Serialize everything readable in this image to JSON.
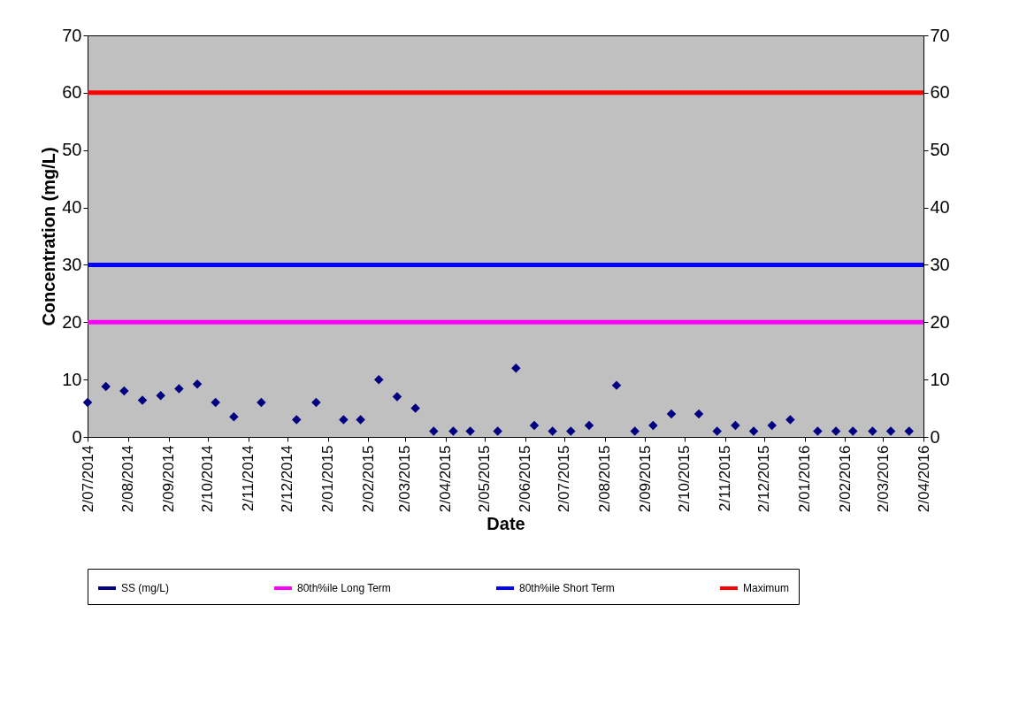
{
  "chart_data": {
    "type": "scatter",
    "xlabel": "Date",
    "ylabel": "Concentration (mg/L)",
    "x": [
      "2014-07-02",
      "2014-07-16",
      "2014-07-30",
      "2014-08-13",
      "2014-08-27",
      "2014-09-10",
      "2014-09-24",
      "2014-10-08",
      "2014-10-22",
      "2014-11-12",
      "2014-12-09",
      "2014-12-24",
      "2015-01-14",
      "2015-01-27",
      "2015-02-10",
      "2015-02-24",
      "2015-03-10",
      "2015-03-24",
      "2015-04-08",
      "2015-04-21",
      "2015-05-12",
      "2015-05-26",
      "2015-06-09",
      "2015-06-23",
      "2015-07-07",
      "2015-07-21",
      "2015-08-11",
      "2015-08-25",
      "2015-09-08",
      "2015-09-22",
      "2015-10-13",
      "2015-10-27",
      "2015-11-10",
      "2015-11-24",
      "2015-12-08",
      "2015-12-22",
      "2016-01-12",
      "2016-01-26",
      "2016-02-08",
      "2016-02-23",
      "2016-03-08",
      "2016-03-22"
    ],
    "series": [
      {
        "name": "SS (mg/L)",
        "color": "#000080",
        "marker": "diamond",
        "values": [
          6,
          8.8,
          8,
          6.4,
          7.2,
          8.4,
          9.2,
          6,
          3.5,
          6,
          3,
          6,
          3,
          3,
          10,
          7,
          5,
          1,
          1,
          1,
          1,
          12,
          2,
          1,
          1,
          2,
          9,
          1,
          2,
          4,
          4,
          1,
          2,
          1,
          2,
          3,
          1,
          1,
          1,
          1,
          1,
          1
        ]
      }
    ],
    "ref_lines": [
      {
        "axis": "y",
        "value": 20,
        "label": "80th%ile Long Term",
        "color": "#ff00ff"
      },
      {
        "axis": "y",
        "value": 30,
        "label": "80th%ile Short Term",
        "color": "#0000ff"
      },
      {
        "axis": "y",
        "value": 60,
        "label": "Maximum",
        "color": "#ff0000"
      }
    ],
    "xlim": [
      "2014-07-02",
      "2016-04-02"
    ],
    "xticks": [
      {
        "value": "2014-07-02",
        "label": "2/07/2014"
      },
      {
        "value": "2014-08-02",
        "label": "2/08/2014"
      },
      {
        "value": "2014-09-02",
        "label": "2/09/2014"
      },
      {
        "value": "2014-10-02",
        "label": "2/10/2014"
      },
      {
        "value": "2014-11-02",
        "label": "2/11/2014"
      },
      {
        "value": "2014-12-02",
        "label": "2/12/2014"
      },
      {
        "value": "2015-01-02",
        "label": "2/01/2015"
      },
      {
        "value": "2015-02-02",
        "label": "2/02/2015"
      },
      {
        "value": "2015-03-02",
        "label": "2/03/2015"
      },
      {
        "value": "2015-04-02",
        "label": "2/04/2015"
      },
      {
        "value": "2015-05-02",
        "label": "2/05/2015"
      },
      {
        "value": "2015-06-02",
        "label": "2/06/2015"
      },
      {
        "value": "2015-07-02",
        "label": "2/07/2015"
      },
      {
        "value": "2015-08-02",
        "label": "2/08/2015"
      },
      {
        "value": "2015-09-02",
        "label": "2/09/2015"
      },
      {
        "value": "2015-10-02",
        "label": "2/10/2015"
      },
      {
        "value": "2015-11-02",
        "label": "2/11/2015"
      },
      {
        "value": "2015-12-02",
        "label": "2/12/2015"
      },
      {
        "value": "2016-01-02",
        "label": "2/01/2016"
      },
      {
        "value": "2016-02-02",
        "label": "2/02/2016"
      },
      {
        "value": "2016-03-02",
        "label": "2/03/2016"
      },
      {
        "value": "2016-04-02",
        "label": "2/04/2016"
      }
    ],
    "ylim": [
      0,
      70
    ],
    "yticks": [
      0,
      10,
      20,
      30,
      40,
      50,
      60,
      70
    ],
    "y2lim": [
      0,
      70
    ],
    "y2ticks": [
      0,
      10,
      20,
      30,
      40,
      50,
      60,
      70
    ],
    "grid": false,
    "legend": "bottom"
  }
}
